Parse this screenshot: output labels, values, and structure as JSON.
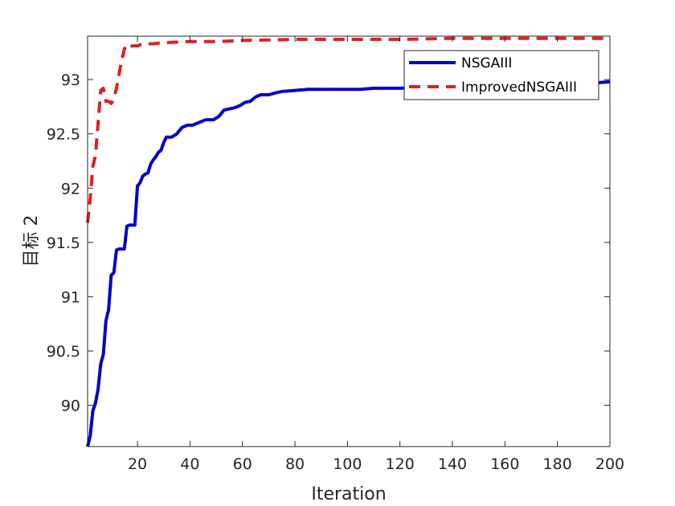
{
  "chart_data": {
    "type": "line",
    "title": "",
    "xlabel": "Iteration",
    "ylabel": "目标 2",
    "xlim": [
      1,
      200
    ],
    "ylim": [
      89.62,
      93.4
    ],
    "xticks": [
      20,
      40,
      60,
      80,
      100,
      120,
      140,
      160,
      180,
      200
    ],
    "yticks": [
      90,
      90.5,
      91,
      91.5,
      92,
      92.5,
      93
    ],
    "grid": false,
    "legend": "top-right",
    "series": [
      {
        "name": "NSGAIII",
        "color": "#0000cc",
        "style": "solid",
        "points": [
          [
            1,
            89.62
          ],
          [
            2,
            89.72
          ],
          [
            3,
            89.95
          ],
          [
            4,
            90.02
          ],
          [
            5,
            90.15
          ],
          [
            6,
            90.38
          ],
          [
            7,
            90.47
          ],
          [
            8,
            90.78
          ],
          [
            9,
            90.88
          ],
          [
            10,
            91.2
          ],
          [
            11,
            91.22
          ],
          [
            12,
            91.43
          ],
          [
            13,
            91.44
          ],
          [
            14,
            91.44
          ],
          [
            15,
            91.44
          ],
          [
            16,
            91.65
          ],
          [
            17,
            91.66
          ],
          [
            18,
            91.66
          ],
          [
            19,
            91.66
          ],
          [
            20,
            92.02
          ],
          [
            21,
            92.05
          ],
          [
            22,
            92.11
          ],
          [
            23,
            92.13
          ],
          [
            24,
            92.14
          ],
          [
            25,
            92.22
          ],
          [
            26,
            92.26
          ],
          [
            27,
            92.29
          ],
          [
            28,
            92.33
          ],
          [
            29,
            92.35
          ],
          [
            30,
            92.42
          ],
          [
            31,
            92.47
          ],
          [
            33,
            92.47
          ],
          [
            35,
            92.5
          ],
          [
            37,
            92.56
          ],
          [
            39,
            92.58
          ],
          [
            41,
            92.58
          ],
          [
            43,
            92.6
          ],
          [
            46,
            92.63
          ],
          [
            49,
            92.63
          ],
          [
            51,
            92.66
          ],
          [
            53,
            92.72
          ],
          [
            55,
            92.73
          ],
          [
            57,
            92.74
          ],
          [
            59,
            92.76
          ],
          [
            61,
            92.79
          ],
          [
            63,
            92.8
          ],
          [
            65,
            92.84
          ],
          [
            67,
            92.86
          ],
          [
            70,
            92.86
          ],
          [
            73,
            92.88
          ],
          [
            75,
            92.89
          ],
          [
            80,
            92.9
          ],
          [
            85,
            92.91
          ],
          [
            90,
            92.91
          ],
          [
            95,
            92.91
          ],
          [
            100,
            92.91
          ],
          [
            105,
            92.91
          ],
          [
            110,
            92.92
          ],
          [
            115,
            92.92
          ],
          [
            120,
            92.92
          ],
          [
            130,
            92.93
          ],
          [
            140,
            92.93
          ],
          [
            150,
            92.93
          ],
          [
            160,
            92.94
          ],
          [
            170,
            92.95
          ],
          [
            180,
            92.96
          ],
          [
            190,
            92.96
          ],
          [
            200,
            92.98
          ]
        ]
      },
      {
        "name": "ImprovedNSGAIII",
        "color": "#e02020",
        "style": "dashed",
        "points": [
          [
            1,
            91.68
          ],
          [
            2,
            91.9
          ],
          [
            3,
            92.2
          ],
          [
            4,
            92.3
          ],
          [
            5,
            92.6
          ],
          [
            6,
            92.9
          ],
          [
            7,
            92.92
          ],
          [
            8,
            92.8
          ],
          [
            9,
            92.8
          ],
          [
            10,
            92.78
          ],
          [
            11,
            92.82
          ],
          [
            12,
            92.92
          ],
          [
            13,
            93.05
          ],
          [
            14,
            93.18
          ],
          [
            15,
            93.28
          ],
          [
            16,
            93.32
          ],
          [
            17,
            93.3
          ],
          [
            18,
            93.31
          ],
          [
            20,
            93.31
          ],
          [
            22,
            93.33
          ],
          [
            26,
            93.33
          ],
          [
            30,
            93.34
          ],
          [
            40,
            93.35
          ],
          [
            50,
            93.35
          ],
          [
            60,
            93.36
          ],
          [
            80,
            93.37
          ],
          [
            100,
            93.37
          ],
          [
            120,
            93.37
          ],
          [
            140,
            93.38
          ],
          [
            160,
            93.38
          ],
          [
            180,
            93.38
          ],
          [
            200,
            93.38
          ]
        ]
      }
    ]
  }
}
